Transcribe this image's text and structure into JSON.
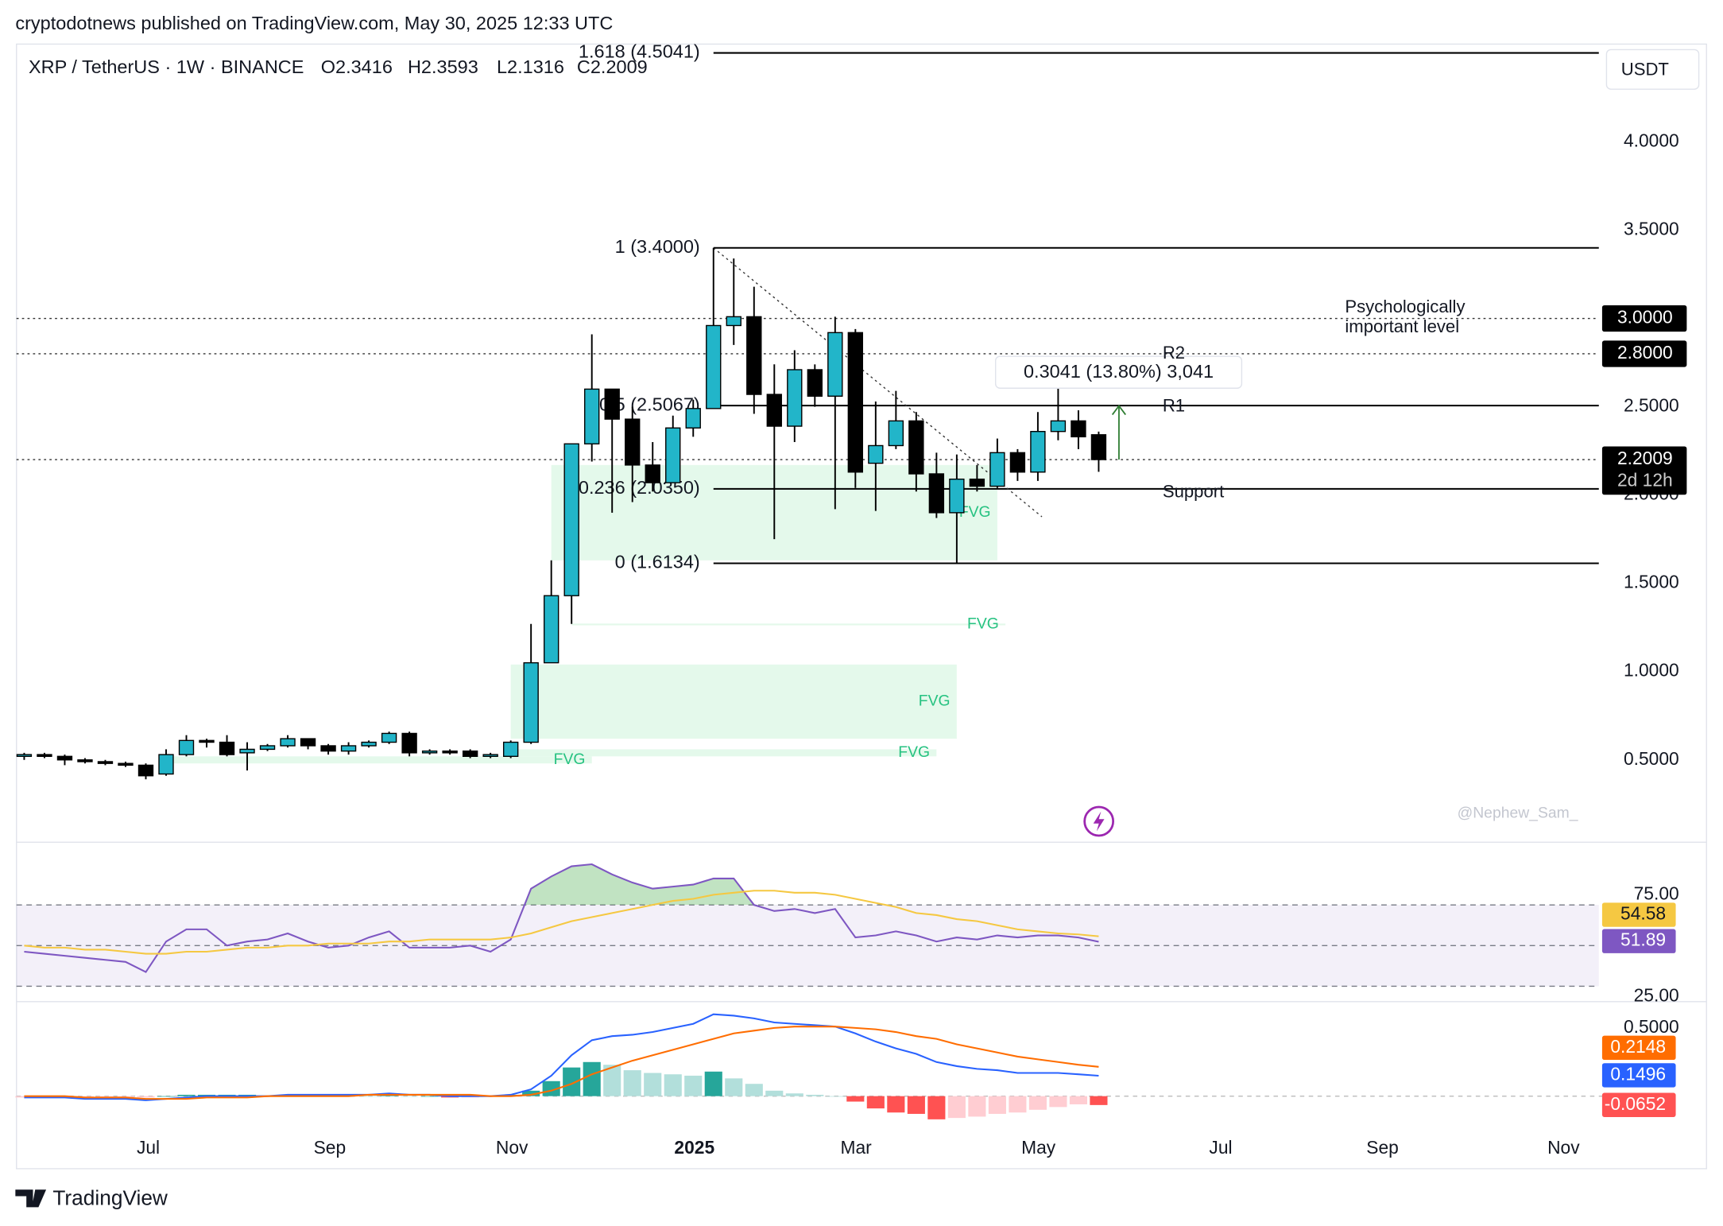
{
  "header": {
    "published": "cryptodotnews published on TradingView.com, May 30, 2025 12:33 UTC",
    "brand": "TradingView"
  },
  "chart_data": [
    {
      "type": "candlestick",
      "symbol": "XRP / TetherUS · 1W · BINANCE",
      "ohlc": [
        "O2.3416",
        "H2.3593",
        "L2.1316",
        "C2.2009"
      ],
      "currency": "USDT",
      "open": [
        0.52,
        0.53,
        0.52,
        0.5,
        0.49,
        0.48,
        0.47,
        0.42,
        0.53,
        0.61,
        0.6,
        0.54,
        0.56,
        0.58,
        0.62,
        0.58,
        0.55,
        0.58,
        0.6,
        0.65,
        0.54,
        0.55,
        0.55,
        0.52,
        0.52,
        0.6,
        1.05,
        1.43,
        2.29,
        2.6,
        2.43,
        2.17,
        2.07,
        2.38,
        2.49,
        2.96,
        3.01,
        2.57,
        2.39,
        2.71,
        2.56,
        2.92,
        2.18,
        2.28,
        2.42,
        2.12,
        1.9,
        2.09,
        2.05,
        2.24,
        2.13,
        2.36,
        2.42,
        2.3416
      ],
      "high": [
        0.54,
        0.54,
        0.53,
        0.51,
        0.5,
        0.49,
        0.48,
        0.56,
        0.64,
        0.62,
        0.64,
        0.6,
        0.59,
        0.64,
        0.62,
        0.59,
        0.6,
        0.61,
        0.66,
        0.66,
        0.56,
        0.56,
        0.56,
        0.54,
        0.61,
        1.27,
        1.63,
        2.29,
        2.91,
        2.6,
        2.5,
        2.3,
        2.45,
        2.54,
        3.4,
        3.34,
        3.18,
        2.74,
        2.82,
        2.74,
        3.01,
        2.94,
        2.53,
        2.59,
        2.47,
        2.24,
        2.23,
        2.17,
        2.32,
        2.26,
        2.47,
        2.65,
        2.48,
        2.3593
      ],
      "low": [
        0.5,
        0.51,
        0.47,
        0.48,
        0.47,
        0.46,
        0.39,
        0.41,
        0.52,
        0.57,
        0.52,
        0.44,
        0.55,
        0.57,
        0.56,
        0.53,
        0.53,
        0.57,
        0.59,
        0.52,
        0.53,
        0.53,
        0.51,
        0.51,
        0.51,
        0.59,
        1.05,
        1.27,
        2.19,
        1.9,
        1.96,
        2.02,
        2.07,
        2.33,
        2.49,
        2.85,
        2.46,
        1.75,
        2.3,
        2.5,
        1.92,
        2.04,
        1.91,
        2.26,
        2.02,
        1.87,
        1.61,
        2.02,
        2.04,
        2.08,
        2.08,
        2.31,
        2.26,
        2.1316
      ],
      "close": [
        0.53,
        0.52,
        0.5,
        0.49,
        0.48,
        0.47,
        0.41,
        0.53,
        0.61,
        0.6,
        0.53,
        0.56,
        0.58,
        0.62,
        0.58,
        0.55,
        0.58,
        0.6,
        0.65,
        0.54,
        0.55,
        0.54,
        0.52,
        0.53,
        0.6,
        1.05,
        1.43,
        2.29,
        2.6,
        2.43,
        2.17,
        2.07,
        2.38,
        2.49,
        2.96,
        3.01,
        2.57,
        2.39,
        2.71,
        2.56,
        2.92,
        2.13,
        2.28,
        2.42,
        2.12,
        1.9,
        2.09,
        2.05,
        2.24,
        2.13,
        2.36,
        2.42,
        2.33,
        2.2009
      ],
      "up_color": "#22b5c9",
      "down_color": "#000000",
      "xlim": [
        -0.38,
        77.67
      ],
      "xticks": [
        {
          "value": 6.12,
          "label": "Jul"
        },
        {
          "value": 15.07,
          "label": "Sep"
        },
        {
          "value": 24.06,
          "label": "Nov"
        },
        {
          "value": 33.06,
          "label": "2025"
        },
        {
          "value": 41.03,
          "label": "Mar"
        },
        {
          "value": 50.03,
          "label": "May"
        },
        {
          "value": 59.02,
          "label": "Jul"
        },
        {
          "value": 67.0,
          "label": "Sep"
        },
        {
          "value": 75.93,
          "label": "Nov"
        }
      ],
      "ylim": [
        0.04,
        4.554
      ],
      "yticks": [
        {
          "value": 0.5,
          "label": "0.5000"
        },
        {
          "value": 1,
          "label": "1.0000"
        },
        {
          "value": 1.5,
          "label": "1.5000"
        },
        {
          "value": 2,
          "label": "2.0000"
        },
        {
          "value": 2.5,
          "label": "2.5000"
        },
        {
          "value": 3.5,
          "label": "3.5000"
        },
        {
          "value": 4,
          "label": "4.0000"
        }
      ],
      "grid": false,
      "fib_start": 34,
      "fib_levels": [
        {
          "label": "1.618 (4.5041)",
          "value": 4.5041
        },
        {
          "label": "1 (3.4000)",
          "value": 3.4
        },
        {
          "label": "0.5 (2.5067)",
          "value": 2.5067
        },
        {
          "label": "0.236 (2.0350)",
          "value": 2.035
        },
        {
          "label": "0 (1.6134)",
          "value": 1.6134
        }
      ],
      "price_lines": [
        {
          "value": 3,
          "label": "3.0000"
        },
        {
          "value": 2.8,
          "label": "2.8000"
        }
      ],
      "last": {
        "value": 2.2009,
        "countdown": "2d 12h"
      },
      "fvg": [
        {
          "label": "FVG",
          "from": 26,
          "to": 48,
          "top": 2.17,
          "bottom": 1.63
        },
        {
          "label": "FVG",
          "from": 27,
          "to": 48.4,
          "top": 1.272,
          "bottom": 1.262
        },
        {
          "label": "FVG",
          "from": 24,
          "to": 46,
          "top": 1.04,
          "bottom": 0.62
        },
        {
          "label": "FVG",
          "from": 24,
          "to": 45,
          "top": 0.56,
          "bottom": 0.52
        },
        {
          "label": "FVG",
          "from": 7.2,
          "to": 28,
          "top": 0.52,
          "bottom": 0.48
        }
      ],
      "trendline": {
        "from": [
          34,
          3.4
        ],
        "to": [
          50.2,
          1.877
        ]
      },
      "measure": {
        "label": "0.3041 (13.80%) 3,041",
        "from": 2.2009,
        "to": 2.505,
        "at": 54
      },
      "annotations": {
        "psychological": [
          "Psychologically",
          "important level"
        ],
        "r2": "R2",
        "r1": "R1",
        "support": "Support"
      },
      "watermark": "@Nephew_Sam_"
    },
    {
      "type": "line",
      "ylim": [
        23,
        100.3
      ],
      "yticks": [
        {
          "value": 75,
          "label": "75.00"
        },
        {
          "value": 25,
          "label": "25.00"
        }
      ],
      "band": [
        30,
        70
      ],
      "band_lines": [
        70,
        50,
        30
      ],
      "series": [
        {
          "color": "#7e57c2",
          "values": [
            47,
            46,
            45,
            44,
            43,
            42,
            37,
            52,
            58,
            58,
            50,
            52,
            53,
            56,
            52,
            49,
            50,
            54,
            57,
            49,
            49,
            49,
            50,
            47,
            53,
            78,
            84,
            89,
            90,
            85,
            81,
            78,
            79,
            80,
            83,
            83,
            70,
            67,
            68,
            66,
            68,
            54,
            55,
            57,
            55,
            52,
            54,
            53,
            55,
            54,
            55,
            55,
            54,
            51.89
          ]
        },
        {
          "color": "#f5c842",
          "values": [
            50,
            49,
            49,
            48,
            48,
            47,
            46,
            46,
            47,
            47,
            48,
            49,
            49,
            50,
            50,
            51,
            51,
            51,
            52,
            52,
            53,
            53,
            53,
            53,
            54,
            56,
            59,
            62,
            64,
            66,
            68,
            70,
            72,
            73,
            75,
            76,
            77,
            77,
            76,
            76,
            75,
            73,
            71,
            69,
            66,
            65,
            63,
            62,
            60,
            58,
            57,
            56,
            55.5,
            54.58
          ]
        }
      ]
    },
    {
      "type": "line",
      "ylim": [
        -0.266,
        0.685
      ],
      "yticks": [
        {
          "value": 0.5,
          "label": "0.5000"
        }
      ],
      "zero_line": 0,
      "series": [
        {
          "type": "bar",
          "colors": [
            "#26a69a",
            "#b2dfdb",
            "#ff5252",
            "#ffcdd2"
          ],
          "values": [
            -0.01,
            -0.01,
            -0.01,
            -0.01,
            -0.01,
            -0.01,
            -0.01,
            0,
            0.01,
            0.01,
            0.01,
            0.01,
            0,
            0.01,
            0.01,
            0.01,
            0.01,
            0,
            0.01,
            0,
            0,
            -0.01,
            -0.01,
            0,
            0.01,
            0.04,
            0.11,
            0.21,
            0.25,
            0.23,
            0.19,
            0.17,
            0.16,
            0.15,
            0.18,
            0.13,
            0.09,
            0.04,
            0.02,
            0.01,
            0,
            -0.04,
            -0.09,
            -0.12,
            -0.13,
            -0.17,
            -0.16,
            -0.15,
            -0.13,
            -0.12,
            -0.1,
            -0.08,
            -0.06,
            -0.0652
          ]
        },
        {
          "color": "#2962ff",
          "values": [
            -0.01,
            -0.01,
            -0.01,
            -0.02,
            -0.02,
            -0.02,
            -0.03,
            -0.02,
            -0.01,
            0,
            0,
            0,
            0,
            0.01,
            0.01,
            0.01,
            0.01,
            0.01,
            0.02,
            0.01,
            0.01,
            0,
            0,
            0,
            0.01,
            0.05,
            0.15,
            0.3,
            0.41,
            0.44,
            0.45,
            0.47,
            0.5,
            0.53,
            0.6,
            0.59,
            0.57,
            0.54,
            0.53,
            0.52,
            0.51,
            0.46,
            0.4,
            0.35,
            0.31,
            0.25,
            0.22,
            0.2,
            0.19,
            0.17,
            0.17,
            0.17,
            0.16,
            0.1496
          ]
        },
        {
          "color": "#ff6d00",
          "values": [
            0,
            0,
            0,
            -0.01,
            -0.01,
            -0.01,
            -0.02,
            -0.02,
            -0.02,
            -0.01,
            -0.01,
            -0.01,
            0,
            0,
            0,
            0,
            0,
            0.01,
            0.01,
            0.01,
            0.01,
            0.01,
            0.01,
            0,
            0,
            0.01,
            0.04,
            0.09,
            0.16,
            0.21,
            0.26,
            0.3,
            0.34,
            0.38,
            0.42,
            0.46,
            0.48,
            0.5,
            0.51,
            0.51,
            0.51,
            0.5,
            0.49,
            0.47,
            0.44,
            0.42,
            0.38,
            0.35,
            0.32,
            0.29,
            0.27,
            0.25,
            0.23,
            0.2148
          ]
        }
      ]
    }
  ]
}
